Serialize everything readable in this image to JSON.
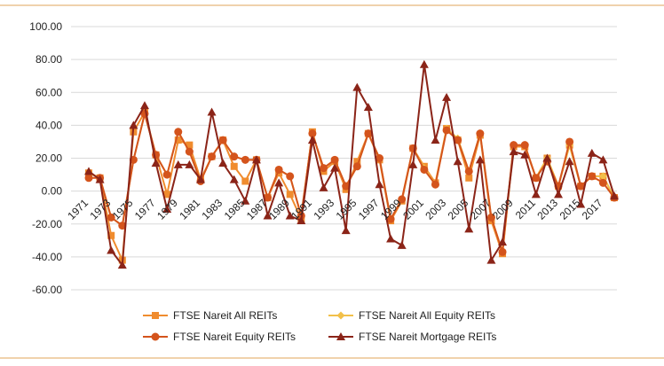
{
  "colors": {
    "rule": "#e8b87a",
    "gridline": "#d9d9d9",
    "axis_text": "#222222"
  },
  "chart_data": {
    "type": "line",
    "xlabel": "",
    "ylabel": "",
    "ylim": [
      -60,
      100
    ],
    "yticks": [
      "100.00",
      "80.00",
      "60.00",
      "40.00",
      "20.00",
      "0.00",
      "-20.00",
      "-40.00",
      "-60.00"
    ],
    "ytick_values": [
      100,
      80,
      60,
      40,
      20,
      0,
      -20,
      -40,
      -60
    ],
    "xticks": [
      "1971",
      "1973",
      "1975",
      "1977",
      "1979",
      "1981",
      "1983",
      "1985",
      "1987",
      "1989",
      "1991",
      "1993",
      "1995",
      "1997",
      "1999",
      "2001",
      "2003",
      "2005",
      "2007",
      "2009",
      "2011",
      "2013",
      "2015",
      "2017"
    ],
    "grid": "horizontal",
    "legend_position": "bottom",
    "x": [
      1971,
      1972,
      1973,
      1974,
      1975,
      1976,
      1977,
      1978,
      1979,
      1980,
      1981,
      1982,
      1983,
      1984,
      1985,
      1986,
      1987,
      1988,
      1989,
      1990,
      1991,
      1992,
      1993,
      1994,
      1995,
      1996,
      1997,
      1998,
      1999,
      2000,
      2001,
      2002,
      2003,
      2004,
      2005,
      2006,
      2007,
      2008,
      2009,
      2010,
      2011,
      2012,
      2013,
      2014,
      2015,
      2016,
      2017,
      2018
    ],
    "series": [
      {
        "name": "FTSE Nareit All REITs",
        "color": "#f08c2e",
        "marker": "square",
        "values": [
          11,
          8,
          -27,
          -42,
          36,
          48,
          22,
          -2,
          31,
          28,
          7,
          21,
          31,
          15,
          6,
          19,
          -4,
          11,
          -2,
          -17,
          36,
          12,
          18,
          1,
          18,
          35,
          19,
          -18,
          -6,
          26,
          15,
          5,
          38,
          31,
          8,
          34,
          -18,
          -38,
          27,
          27,
          8,
          20,
          3,
          28,
          3,
          9,
          9,
          -4
        ]
      },
      {
        "name": "FTSE Nareit All Equity REITs",
        "color": "#f2c04a",
        "marker": "diamond",
        "values": [
          11,
          8,
          -16,
          -21,
          19,
          47,
          22,
          10,
          36,
          24,
          6,
          21,
          31,
          21,
          19,
          19,
          -4,
          13,
          9,
          -15,
          35,
          14,
          19,
          3,
          15,
          35,
          20,
          -17,
          -5,
          26,
          14,
          4,
          38,
          32,
          12,
          35,
          -16,
          -37,
          28,
          28,
          8,
          20,
          3,
          28,
          3,
          9,
          9,
          -4
        ]
      },
      {
        "name": "FTSE Nareit Equity REITs",
        "color": "#d4541c",
        "marker": "circle",
        "values": [
          8,
          8,
          -16,
          -21,
          19,
          47,
          22,
          10,
          36,
          24,
          6,
          21,
          31,
          21,
          19,
          19,
          -4,
          13,
          9,
          -15,
          35,
          14,
          19,
          3,
          15,
          35,
          20,
          -17,
          -5,
          26,
          13,
          4,
          37,
          31,
          12,
          35,
          -16,
          -37,
          28,
          28,
          8,
          18,
          3,
          30,
          3,
          9,
          5,
          -4
        ]
      },
      {
        "name": "FTSE Nareit Mortgage REITs",
        "color": "#8b2418",
        "marker": "triangle",
        "values": [
          12,
          7,
          -36,
          -45,
          40,
          52,
          17,
          -11,
          16,
          16,
          7,
          48,
          17,
          7,
          -6,
          19,
          -15,
          5,
          -15,
          -18,
          31,
          2,
          14,
          -24,
          63,
          51,
          4,
          -29,
          -33,
          16,
          77,
          31,
          57,
          18,
          -23,
          19,
          -42,
          -31,
          24,
          22,
          -2,
          20,
          -2,
          18,
          -8,
          23,
          19,
          -3
        ]
      }
    ]
  }
}
